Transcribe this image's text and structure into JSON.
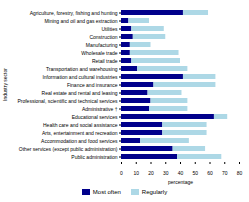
{
  "chart_data": {
    "type": "bar",
    "orientation": "horizontal",
    "stacked": true,
    "xlabel": "percentage",
    "ylabel": "Industry sector",
    "categories": [
      "Agriculture, forestry, fishing and hunting",
      "Mining and oil and gas extraction",
      "Utilities",
      "Construction",
      "Manufacturing",
      "Wholesale trade",
      "Retail trade",
      "Transportation and warehousing",
      "Information and cultural industries",
      "Finance and insurance",
      "Real estate and rental and leasing",
      "Professional, scientific and technical services",
      "Administrative †",
      "Educational services",
      "Health care and social assistance",
      "Arts, entertainment and recreation",
      "Accommodation and food services",
      "Other services (except public administration)",
      "Public administration"
    ],
    "series": [
      {
        "name": "Most often",
        "color": "#00008B",
        "values": [
          42,
          5,
          7,
          8,
          6,
          6,
          7,
          11,
          42,
          22,
          18,
          20,
          19,
          63,
          28,
          28,
          13,
          35,
          38
        ]
      },
      {
        "name": "Regularly",
        "color": "#ADD8E6",
        "values": [
          17,
          14,
          22,
          22,
          14,
          33,
          33,
          34,
          22,
          42,
          23,
          25,
          26,
          9,
          30,
          30,
          33,
          22,
          30
        ]
      }
    ],
    "xlim": [
      0,
      80
    ],
    "xticks": [
      0,
      10,
      20,
      30,
      40,
      50,
      60,
      70,
      80
    ],
    "legend": "bottom"
  }
}
